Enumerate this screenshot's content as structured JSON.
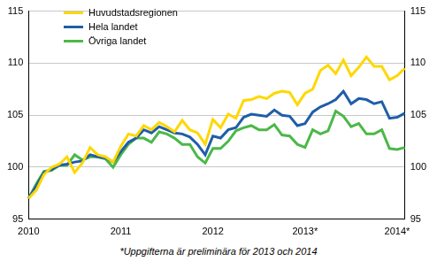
{
  "chart_data": {
    "type": "line",
    "annotations": [
      "*Uppgifterna är preliminära för 2013 och 2014"
    ],
    "categories": [
      "2010",
      null,
      null,
      null,
      null,
      null,
      null,
      null,
      null,
      null,
      null,
      null,
      "2011",
      null,
      null,
      null,
      null,
      null,
      null,
      null,
      null,
      null,
      null,
      null,
      "2012",
      null,
      null,
      null,
      null,
      null,
      null,
      null,
      null,
      null,
      null,
      null,
      "2013*",
      null,
      null,
      null,
      null,
      null,
      null,
      null,
      null,
      null,
      null,
      null,
      "2014*",
      null
    ],
    "series": [
      {
        "name": "Huvudstadsregionen",
        "color": "#ffd700",
        "values": [
          97.0,
          97.8,
          99.3,
          100.0,
          100.3,
          101.0,
          99.5,
          100.4,
          101.9,
          101.2,
          101.0,
          100.5,
          102.0,
          103.2,
          103.0,
          104.0,
          103.6,
          104.3,
          103.9,
          103.4,
          104.5,
          103.6,
          103.3,
          102.2,
          104.6,
          103.8,
          105.1,
          104.7,
          106.4,
          106.5,
          106.8,
          106.6,
          107.1,
          107.3,
          107.2,
          106.0,
          107.1,
          107.5,
          109.3,
          109.8,
          109.0,
          110.3,
          108.8,
          109.6,
          110.6,
          109.7,
          109.7,
          108.4,
          108.8,
          109.5
        ]
      },
      {
        "name": "Hela landet",
        "color": "#1f5ea8",
        "values": [
          97.0,
          98.2,
          99.5,
          99.8,
          100.2,
          100.3,
          100.5,
          100.6,
          101.2,
          101.0,
          100.9,
          100.5,
          101.5,
          102.4,
          102.8,
          103.6,
          103.3,
          103.9,
          103.6,
          103.3,
          103.2,
          102.9,
          102.2,
          101.2,
          103.0,
          102.8,
          103.6,
          103.8,
          104.8,
          105.1,
          105.0,
          104.9,
          105.5,
          105.0,
          104.9,
          104.0,
          104.2,
          105.3,
          105.8,
          106.1,
          106.5,
          107.3,
          106.1,
          106.6,
          106.5,
          106.1,
          106.3,
          104.7,
          104.8,
          105.2
        ]
      },
      {
        "name": "Övriga landet",
        "color": "#4cb848",
        "values": [
          97.0,
          98.4,
          99.6,
          99.7,
          100.2,
          100.2,
          101.2,
          100.7,
          101.0,
          101.0,
          100.8,
          100.0,
          101.2,
          102.2,
          102.8,
          102.8,
          102.4,
          103.4,
          103.2,
          102.8,
          102.2,
          102.2,
          101.0,
          100.4,
          101.8,
          101.8,
          102.5,
          103.5,
          103.8,
          104.0,
          103.6,
          103.6,
          104.1,
          103.1,
          103.0,
          102.2,
          101.9,
          103.6,
          103.2,
          103.5,
          105.4,
          104.9,
          103.9,
          104.2,
          103.2,
          103.2,
          103.6,
          101.8,
          101.7,
          101.9
        ]
      }
    ],
    "ylim": [
      95,
      115
    ],
    "yticks": [
      95,
      100,
      105,
      110,
      115
    ],
    "y2lim": [
      95,
      115
    ],
    "y2ticks": [
      95,
      100,
      105,
      110,
      115
    ],
    "grid": true,
    "legend": "upper left"
  }
}
